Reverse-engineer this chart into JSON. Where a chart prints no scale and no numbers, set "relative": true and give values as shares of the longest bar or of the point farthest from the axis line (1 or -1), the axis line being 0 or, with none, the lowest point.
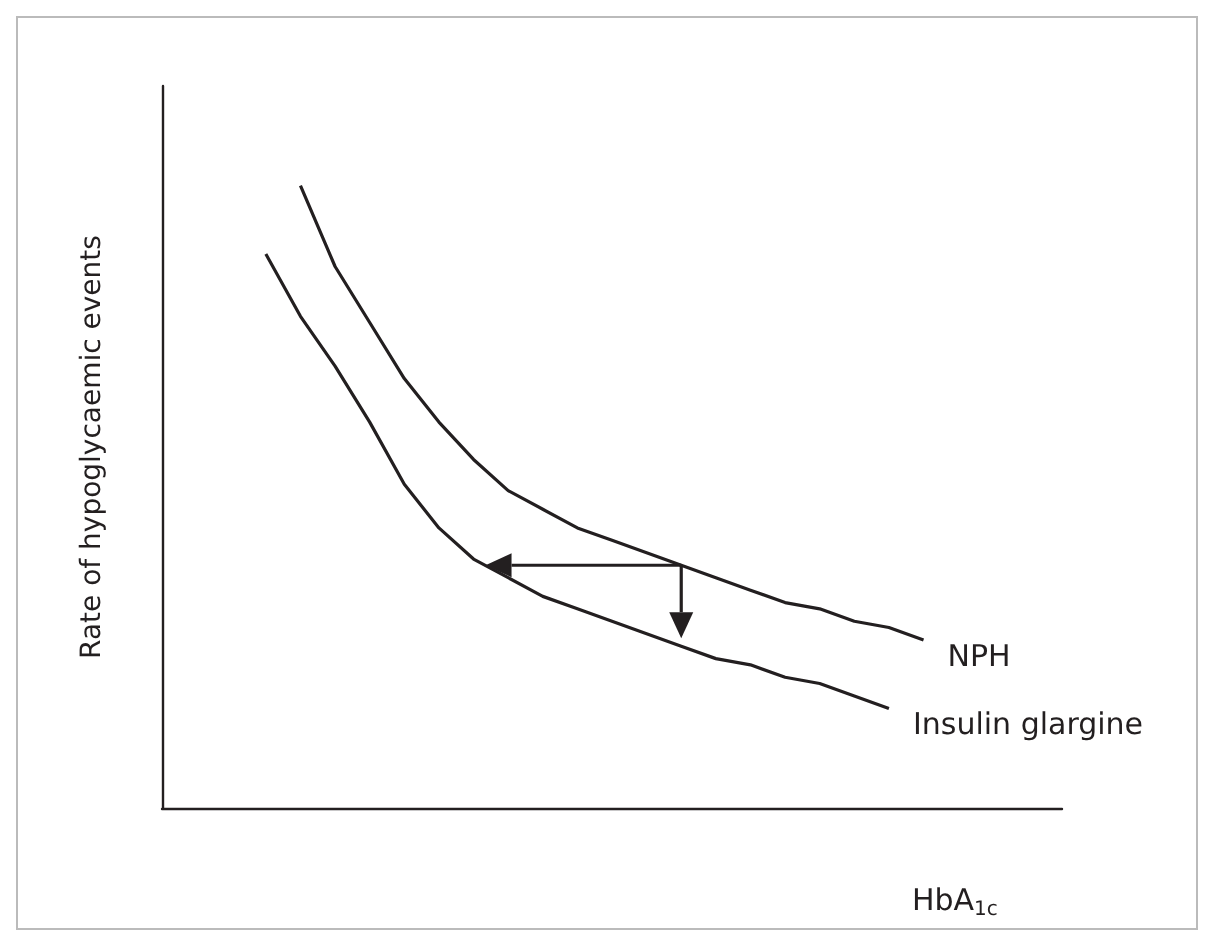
{
  "chart_data": {
    "type": "line",
    "relative": true,
    "xlabel": "HbA$_{1c}$",
    "ylabel": "Rate of hypoglycaemic events",
    "marker": "none",
    "categories": [
      null,
      null,
      null,
      null,
      null,
      null,
      null,
      null,
      null,
      null,
      null,
      null,
      null,
      null,
      null,
      null,
      null,
      null,
      null,
      null,
      null,
      null,
      null,
      null,
      null,
      null,
      null
    ],
    "series": [
      {
        "name": "NPH",
        "color": "#231f20",
        "values": [
          null,
          null,
          null,
          null,
          1.0,
          0.87,
          0.78,
          0.69,
          0.62,
          0.56,
          0.51,
          0.48,
          0.45,
          0.43,
          0.41,
          0.39,
          0.37,
          0.35,
          0.33,
          0.32,
          0.3,
          0.29,
          0.27,
          null,
          null,
          null,
          null
        ]
      },
      {
        "name": "Insulin glargine",
        "color": "#231f20",
        "values": [
          null,
          null,
          null,
          0.89,
          0.79,
          0.71,
          0.62,
          0.52,
          0.45,
          0.4,
          0.37,
          0.34,
          0.32,
          0.3,
          0.28,
          0.26,
          0.24,
          0.23,
          0.21,
          0.2,
          0.18,
          0.16,
          null,
          null,
          null,
          null,
          null
        ]
      }
    ]
  }
}
